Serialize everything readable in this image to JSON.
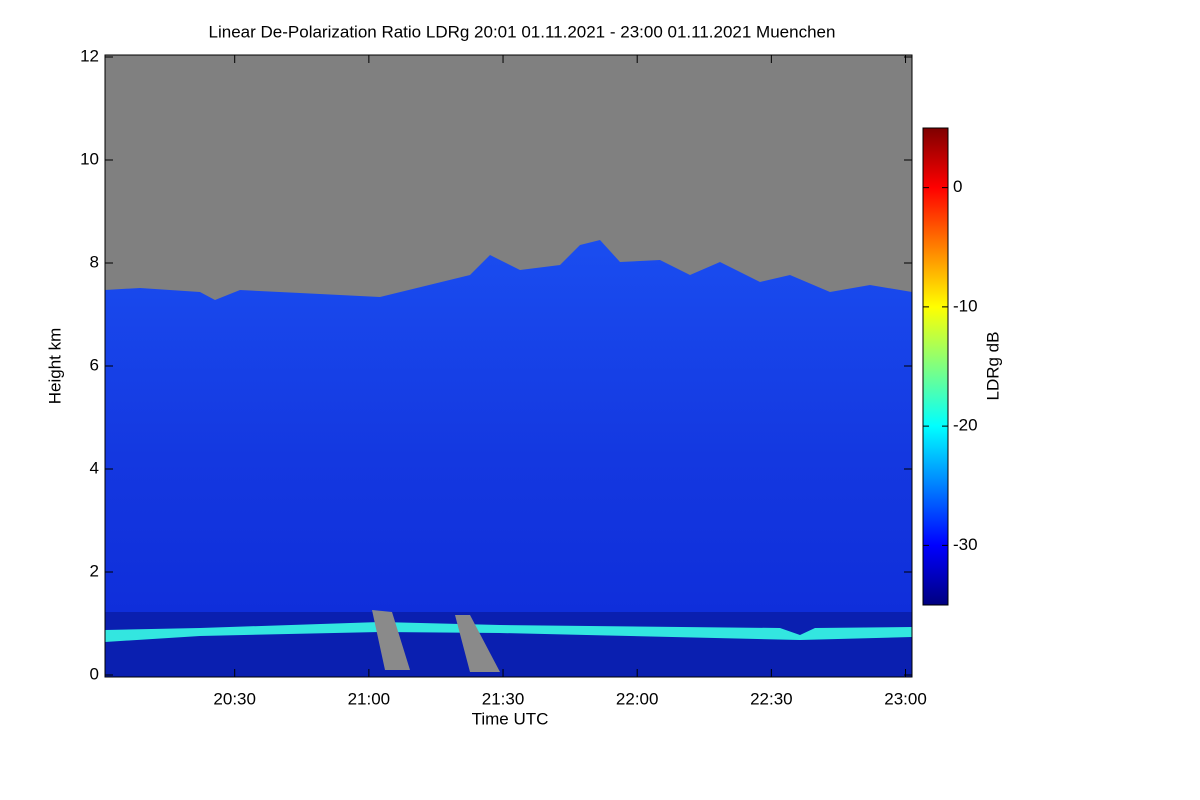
{
  "chart_data": {
    "type": "heatmap",
    "title": "Linear De-Polarization Ratio LDRg   20:01 01.11.2021 - 23:00 01.11.2021 Muenchen",
    "x_label": "Time UTC",
    "y_label": "Height km",
    "colorbar_label": "LDRg dB",
    "xlim": [
      1201,
      1381
    ],
    "xticks": [
      {
        "value": 1230,
        "label": "20:30"
      },
      {
        "value": 1260,
        "label": "21:00"
      },
      {
        "value": 1290,
        "label": "21:30"
      },
      {
        "value": 1320,
        "label": "22:00"
      },
      {
        "value": 1350,
        "label": "22:30"
      },
      {
        "value": 1380,
        "label": "23:00"
      }
    ],
    "ylim": [
      0,
      12
    ],
    "yticks": [
      0,
      2,
      4,
      6,
      8,
      10,
      12
    ],
    "clim": [
      -35,
      5
    ],
    "cticks": [
      -30,
      -20,
      -10,
      0
    ],
    "colormap": [
      "#00007f",
      "#0000ff",
      "#0080ff",
      "#00ffff",
      "#80ff80",
      "#ffff00",
      "#ff8000",
      "#ff0000",
      "#7f0000"
    ]
  }
}
